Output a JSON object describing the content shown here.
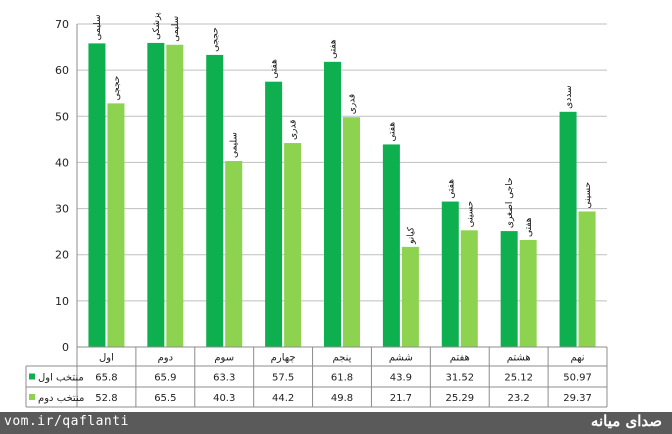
{
  "chart_data": {
    "type": "bar",
    "title": "",
    "xlabel": "",
    "ylabel": "",
    "ylim": [
      0,
      70
    ],
    "yticks": [
      0,
      10,
      20,
      30,
      40,
      50,
      60,
      70
    ],
    "grid": true,
    "categories": [
      "اول",
      "دوم",
      "سوم",
      "چهارم",
      "پنجم",
      "ششم",
      "هفتم",
      "هشتم",
      "نهم"
    ],
    "series": [
      {
        "name": "منتخب اول",
        "color": "#0eaf4f",
        "values": [
          65.8,
          65.9,
          63.3,
          57.5,
          61.8,
          43.9,
          31.52,
          25.12,
          50.97
        ],
        "value_labels": [
          "65.8",
          "65.9",
          "63.3",
          "57.5",
          "61.8",
          "43.9",
          "31.52",
          "25.12",
          "50.97"
        ],
        "bar_labels": [
          "سلیمی",
          "پزشکی",
          "حججی",
          "هفتی",
          "هفتی",
          "هفتی",
          "هفتی",
          "حاجی اصغری",
          "سددی"
        ]
      },
      {
        "name": "منتخب دوم",
        "color": "#8dd34f",
        "values": [
          52.8,
          65.5,
          40.3,
          44.2,
          49.8,
          21.7,
          25.29,
          23.2,
          29.37
        ],
        "value_labels": [
          "52.8",
          "65.5",
          "40.3",
          "44.2",
          "49.8",
          "21.7",
          "25.29",
          "23.2",
          "29.37"
        ],
        "bar_labels": [
          "حججی",
          "سلیمی",
          "سلیمی",
          "قدری",
          "قدری",
          "کیانو",
          "حسینی",
          "هفتی",
          "حسینی"
        ]
      }
    ]
  },
  "watermark": {
    "url": "vom.ir/qaflanti",
    "logo": "صدای میانه"
  }
}
